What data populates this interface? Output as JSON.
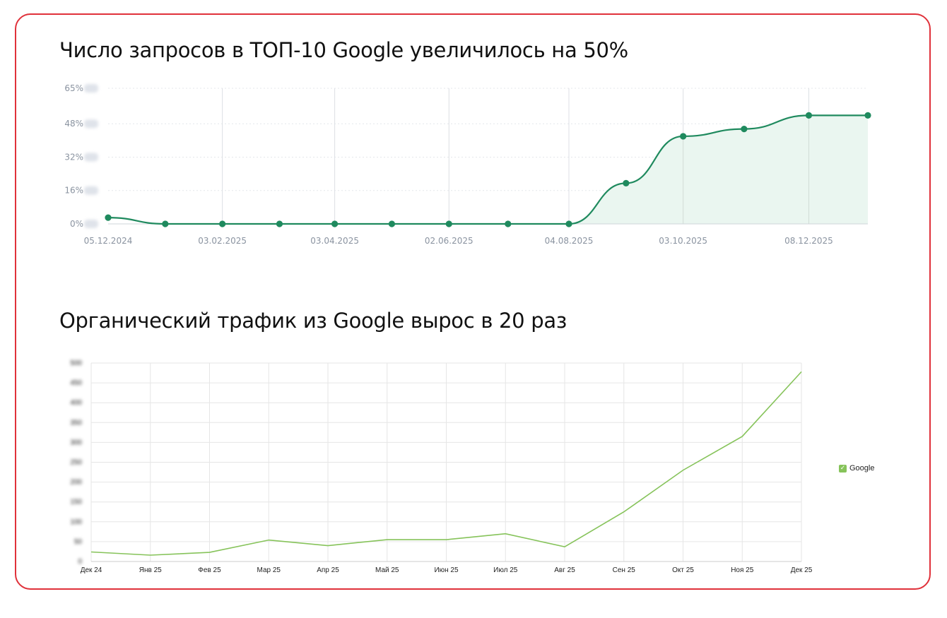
{
  "chart_data": [
    {
      "type": "area",
      "title": "Число запросов в ТОП-10 Google увеличилось на 50%",
      "xlabel": "",
      "ylabel": "",
      "y_ticks": [
        "0%",
        "16%",
        "32%",
        "48%",
        "65%"
      ],
      "ylim": [
        0,
        65
      ],
      "x_ticks": [
        "05.12.2024",
        "03.02.2025",
        "03.04.2025",
        "02.06.2025",
        "04.08.2025",
        "03.10.2025",
        "08.12.2025"
      ],
      "x": [
        "05.12.2024",
        "04.01.2025",
        "03.02.2025",
        "05.03.2025",
        "03.04.2025",
        "03.05.2025",
        "02.06.2025",
        "03.07.2025",
        "04.08.2025",
        "03.09.2025",
        "03.10.2025",
        "04.11.2025",
        "08.12.2025",
        "08.01.2026"
      ],
      "values": [
        3,
        0,
        0,
        0,
        0,
        0,
        0,
        0,
        0,
        19.5,
        42,
        45.5,
        52,
        52
      ],
      "grid": true,
      "color": "#1f8a5e",
      "fill_color": "#eaf6f0"
    },
    {
      "type": "line",
      "title": "Органический трафик из Google вырос в 20 раз",
      "xlabel": "",
      "ylabel": "",
      "categories": [
        "Дек 24",
        "Янв 25",
        "Фев 25",
        "Мар 25",
        "Апр 25",
        "Май 25",
        "Июн 25",
        "Июл 25",
        "Авг 25",
        "Сен 25",
        "Окт 25",
        "Ноя 25",
        "Дек 25"
      ],
      "y_ticks": [
        "0",
        "50",
        "100",
        "150",
        "200",
        "250",
        "300",
        "350",
        "400",
        "450",
        "500"
      ],
      "ylim": [
        0,
        500
      ],
      "series": [
        {
          "name": "Google",
          "values": [
            24,
            16,
            23,
            54,
            40,
            55,
            55,
            70,
            37,
            125,
            230,
            315,
            478
          ]
        }
      ],
      "legend_position": "right",
      "grid": true,
      "color": "#86c35a"
    }
  ]
}
